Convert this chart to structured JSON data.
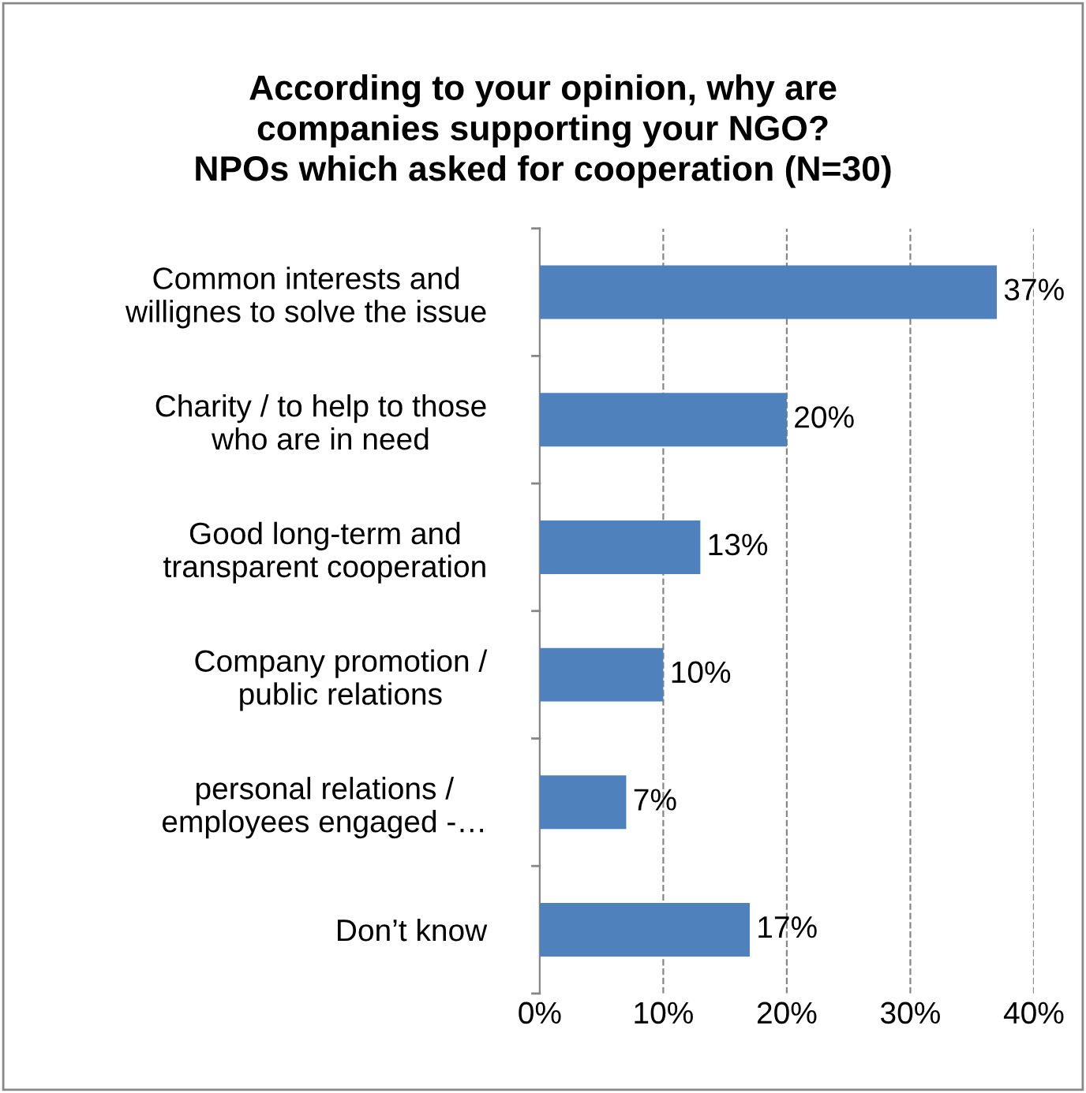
{
  "chart_data": {
    "type": "bar",
    "orientation": "horizontal",
    "title": "According to your opinion, why are\ncompanies supporting your NGO?\nNPOs which asked for cooperation (N=30)",
    "categories": [
      "Common interests and\nwillignes to solve the issue",
      "Charity / to help to those\nwho are in need",
      "Good long-term and\ntransparent cooperation",
      "Company promotion /\npublic relations",
      "personal relations /\nemployees engaged -…",
      "Don’t know"
    ],
    "values": [
      37,
      20,
      13,
      10,
      7,
      17
    ],
    "value_labels": [
      "37%",
      "20%",
      "13%",
      "10%",
      "7%",
      "17%"
    ],
    "color": "#4f81bd",
    "xlim": [
      0,
      40
    ],
    "xticks": [
      {
        "value": 0,
        "label": "0%"
      },
      {
        "value": 10,
        "label": "10%"
      },
      {
        "value": 20,
        "label": "20%"
      },
      {
        "value": 30,
        "label": "30%"
      },
      {
        "value": 40,
        "label": "40%"
      }
    ],
    "grid": "x",
    "line_style": "dashed",
    "legend": false
  }
}
